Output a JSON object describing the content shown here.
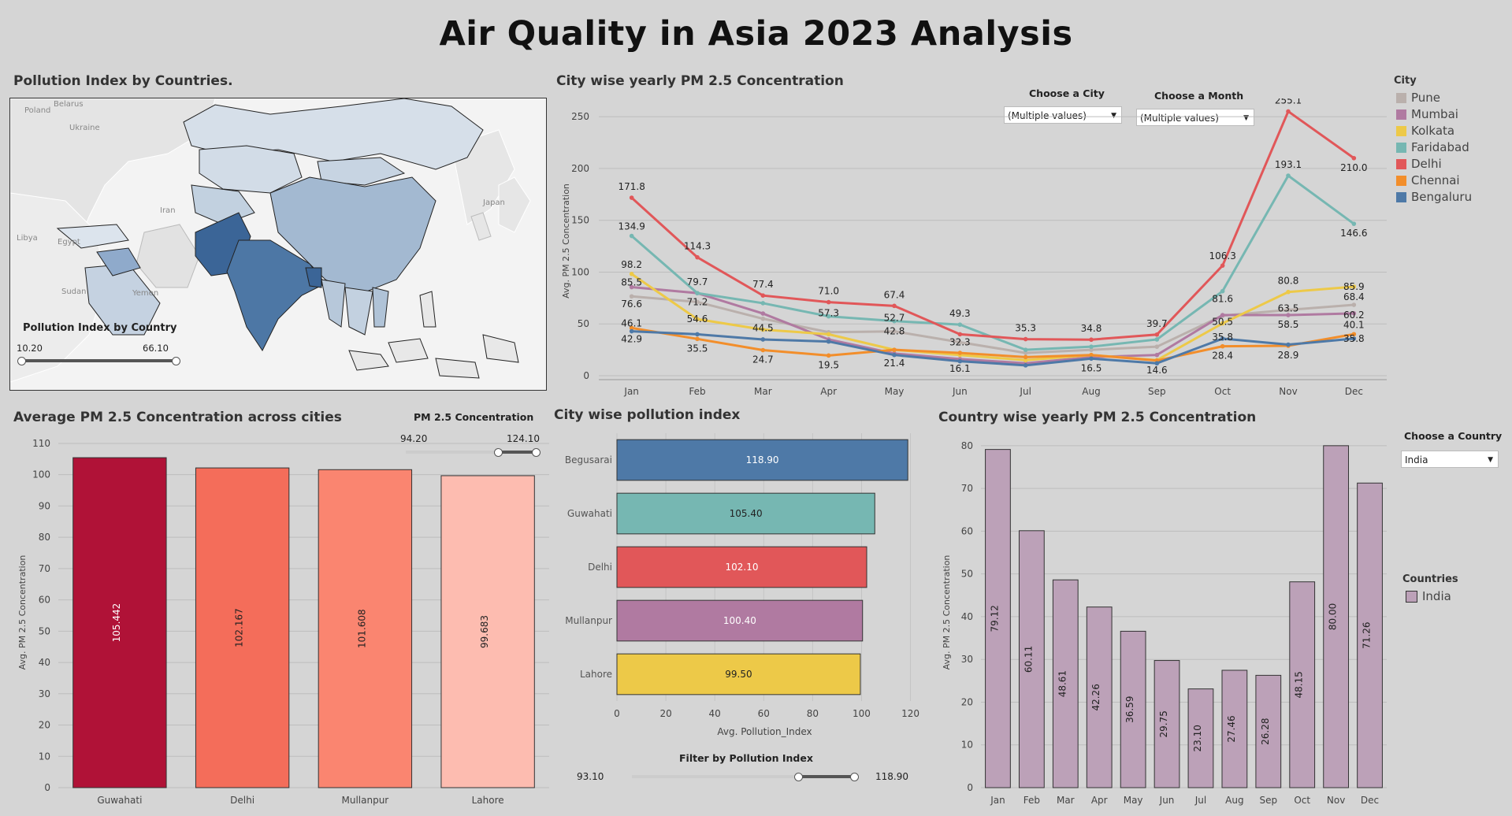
{
  "dashboard": {
    "title": "Air Quality in Asia 2023 Analysis"
  },
  "map_panel": {
    "title": "Pollution Index by Countries.",
    "legend_title": "Pollution Index by Country",
    "range_min": "10.20",
    "range_max": "66.10",
    "labels": [
      "Poland",
      "Belarus",
      "Ukraine",
      "Iran",
      "Japan",
      "Libya",
      "Egypt",
      "Sudan",
      "Yemen"
    ],
    "colors": {
      "low": "#d6dfe9",
      "mid": "#a3b9d1",
      "high": "#3b6597"
    }
  },
  "line_panel": {
    "title": "City wise yearly PM 2.5 Concentration",
    "city_filter": {
      "label": "Choose a City",
      "value": "(Multiple values)"
    },
    "month_filter": {
      "label": "Choose a Month",
      "value": "(Multiple values)"
    },
    "legend_title": "City"
  },
  "bar_panel": {
    "title": "Average PM 2.5 Concentration across cities",
    "slider_label": "PM 2.5 Concentration",
    "slider_min": "94.20",
    "slider_max": "124.10"
  },
  "hbar_panel": {
    "title": "City wise pollution index",
    "filter_label": "Filter by Pollution Index",
    "filter_min": "93.10",
    "filter_max": "118.90"
  },
  "country_panel": {
    "title": "Country wise yearly PM 2.5 Concentration",
    "country_filter": {
      "label": "Choose a Country",
      "value": "India"
    },
    "legend_title": "Countries",
    "legend_item": "India"
  },
  "chart_data": [
    {
      "id": "line",
      "type": "line",
      "ylabel": "Avg. PM 2.5 Concentration",
      "ylim": [
        0,
        260
      ],
      "yticks": [
        0,
        50,
        100,
        150,
        200,
        250
      ],
      "categories": [
        "Jan",
        "Feb",
        "Mar",
        "Apr",
        "May",
        "Jun",
        "Jul",
        "Aug",
        "Sep",
        "Oct",
        "Nov",
        "Dec"
      ],
      "legend_placement": "right",
      "series": [
        {
          "name": "Pune",
          "color": "#bab0ac",
          "values": [
            76.6,
            71.2,
            55,
            42,
            42.8,
            32.3,
            22,
            25,
            28,
            58,
            63.5,
            68.4
          ]
        },
        {
          "name": "Mumbai",
          "color": "#b07aa1",
          "values": [
            85.5,
            79.7,
            60,
            35,
            21.4,
            16.1,
            12,
            18,
            20,
            58.5,
            58.5,
            60.2
          ]
        },
        {
          "name": "Kolkata",
          "color": "#edc948",
          "values": [
            98.2,
            54.6,
            44.5,
            40,
            25,
            20,
            15,
            20,
            15,
            50.5,
            80.8,
            85.9
          ]
        },
        {
          "name": "Faridabad",
          "color": "#76b7b2",
          "values": [
            134.9,
            79.7,
            70,
            57.3,
            52.7,
            49.3,
            25,
            28,
            35,
            81.6,
            193.1,
            146.6
          ]
        },
        {
          "name": "Delhi",
          "color": "#e15759",
          "values": [
            171.8,
            114.3,
            77.4,
            71.0,
            67.4,
            40,
            35.3,
            34.8,
            39.7,
            106.3,
            255.1,
            210.0
          ]
        },
        {
          "name": "Chennai",
          "color": "#f28e2b",
          "values": [
            46.1,
            35.5,
            24.7,
            19.5,
            25,
            22,
            18,
            20,
            14.6,
            28.4,
            28.9,
            40.1
          ]
        },
        {
          "name": "Bengaluru",
          "color": "#4e79a7",
          "values": [
            42.9,
            40,
            35,
            33,
            20,
            14,
            10,
            16.5,
            12,
            35.8,
            30,
            35.8
          ]
        }
      ],
      "data_labels": [
        {
          "series": "Delhi",
          "i": 0,
          "text": "171.8",
          "dy": -10
        },
        {
          "series": "Faridabad",
          "i": 0,
          "text": "134.9",
          "dy": -8
        },
        {
          "series": "Kolkata",
          "i": 0,
          "text": "98.2",
          "dy": -8
        },
        {
          "series": "Mumbai",
          "i": 0,
          "text": "85.5",
          "dy": -2
        },
        {
          "series": "Pune",
          "i": 0,
          "text": "76.6",
          "dy": 14
        },
        {
          "series": "Chennai",
          "i": 0,
          "text": "46.1",
          "dy": -2
        },
        {
          "series": "Bengaluru",
          "i": 0,
          "text": "42.9",
          "dy": 14
        },
        {
          "series": "Delhi",
          "i": 1,
          "text": "114.3",
          "dy": -10
        },
        {
          "series": "Faridabad",
          "i": 1,
          "text": "79.7",
          "dy": -10
        },
        {
          "series": "Pune",
          "i": 1,
          "text": "71.2",
          "dy": 4
        },
        {
          "series": "Kolkata",
          "i": 1,
          "text": "54.6",
          "dy": 4
        },
        {
          "series": "Chennai",
          "i": 1,
          "text": "35.5",
          "dy": 16
        },
        {
          "series": "Delhi",
          "i": 2,
          "text": "77.4",
          "dy": -10
        },
        {
          "series": "Kolkata",
          "i": 2,
          "text": "44.5",
          "dy": 2
        },
        {
          "series": "Chennai",
          "i": 2,
          "text": "24.7",
          "dy": 16
        },
        {
          "series": "Delhi",
          "i": 3,
          "text": "71.0",
          "dy": -10
        },
        {
          "series": "Faridabad",
          "i": 3,
          "text": "57.3",
          "dy": 0
        },
        {
          "series": "Chennai",
          "i": 3,
          "text": "19.5",
          "dy": 16
        },
        {
          "series": "Delhi",
          "i": 4,
          "text": "67.4",
          "dy": -10
        },
        {
          "series": "Faridabad",
          "i": 4,
          "text": "52.7",
          "dy": 0
        },
        {
          "series": "Pune",
          "i": 4,
          "text": "42.8",
          "dy": 4
        },
        {
          "series": "Mumbai",
          "i": 4,
          "text": "21.4",
          "dy": 16
        },
        {
          "series": "Faridabad",
          "i": 5,
          "text": "49.3",
          "dy": -10
        },
        {
          "series": "Pune",
          "i": 5,
          "text": "32.3",
          "dy": 4
        },
        {
          "series": "Mumbai",
          "i": 5,
          "text": "16.1",
          "dy": 16
        },
        {
          "series": "Delhi",
          "i": 6,
          "text": "35.3",
          "dy": -10
        },
        {
          "series": "Delhi",
          "i": 7,
          "text": "34.8",
          "dy": -10
        },
        {
          "series": "Bengaluru",
          "i": 7,
          "text": "16.5",
          "dy": 16
        },
        {
          "series": "Delhi",
          "i": 8,
          "text": "39.7",
          "dy": -10
        },
        {
          "series": "Chennai",
          "i": 8,
          "text": "14.6",
          "dy": 16
        },
        {
          "series": "Delhi",
          "i": 9,
          "text": "106.3",
          "dy": -8
        },
        {
          "series": "Faridabad",
          "i": 9,
          "text": "81.6",
          "dy": 14
        },
        {
          "series": "Kolkata",
          "i": 9,
          "text": "50.5",
          "dy": 2
        },
        {
          "series": "Bengaluru",
          "i": 9,
          "text": "35.8",
          "dy": 2
        },
        {
          "series": "Chennai",
          "i": 9,
          "text": "28.4",
          "dy": 16
        },
        {
          "series": "Delhi",
          "i": 10,
          "text": "255.1",
          "dy": -10
        },
        {
          "series": "Faridabad",
          "i": 10,
          "text": "193.1",
          "dy": -10
        },
        {
          "series": "Kolkata",
          "i": 10,
          "text": "80.8",
          "dy": -10
        },
        {
          "series": "Pune",
          "i": 10,
          "text": "63.5",
          "dy": 2
        },
        {
          "series": "Mumbai",
          "i": 10,
          "text": "58.5",
          "dy": 16
        },
        {
          "series": "Chennai",
          "i": 10,
          "text": "28.9",
          "dy": 16
        },
        {
          "series": "Delhi",
          "i": 11,
          "text": "210.0",
          "dy": 16
        },
        {
          "series": "Faridabad",
          "i": 11,
          "text": "146.6",
          "dy": 16
        },
        {
          "series": "Kolkata",
          "i": 11,
          "text": "85.9",
          "dy": 4
        },
        {
          "series": "Pune",
          "i": 11,
          "text": "68.4",
          "dy": -6
        },
        {
          "series": "Mumbai",
          "i": 11,
          "text": "60.2",
          "dy": 6
        },
        {
          "series": "Chennai",
          "i": 11,
          "text": "40.1",
          "dy": -8
        },
        {
          "series": "Bengaluru",
          "i": 11,
          "text": "35.8",
          "dy": 4
        }
      ]
    },
    {
      "id": "avgbar",
      "type": "bar",
      "ylabel": "Avg. PM 2.5 Concentration",
      "ylim": [
        0,
        112
      ],
      "yticks": [
        0,
        10,
        20,
        30,
        40,
        50,
        60,
        70,
        80,
        90,
        100,
        110
      ],
      "categories": [
        "Guwahati",
        "Delhi",
        "Mullanpur",
        "Lahore"
      ],
      "values": [
        105.442,
        102.167,
        101.608,
        99.683
      ],
      "labels": [
        "105.442",
        "102.167",
        "101.608",
        "99.683"
      ],
      "colors": [
        "#b01237",
        "#f46d5a",
        "#fa8570",
        "#fdbcb0"
      ]
    },
    {
      "id": "hbar",
      "type": "bar",
      "orientation": "horizontal",
      "xlabel": "Avg. Pollution_Index",
      "xlim": [
        0,
        124
      ],
      "xticks": [
        0,
        20,
        40,
        60,
        80,
        100,
        120
      ],
      "categories": [
        "Begusarai",
        "Guwahati",
        "Delhi",
        "Mullanpur",
        "Lahore"
      ],
      "values": [
        118.9,
        105.4,
        102.1,
        100.4,
        99.5
      ],
      "labels": [
        "118.90",
        "105.40",
        "102.10",
        "100.40",
        "99.50"
      ],
      "colors": [
        "#4e79a7",
        "#76b7b2",
        "#e15759",
        "#b07aa1",
        "#edc948"
      ]
    },
    {
      "id": "country",
      "type": "bar",
      "ylabel": "Avg. PM 2.5 Concentration",
      "ylim": [
        0,
        82
      ],
      "yticks": [
        0,
        10,
        20,
        30,
        40,
        50,
        60,
        70,
        80
      ],
      "categories": [
        "Jan",
        "Feb",
        "Mar",
        "Apr",
        "May",
        "Jun",
        "Jul",
        "Aug",
        "Sep",
        "Oct",
        "Nov",
        "Dec"
      ],
      "values": [
        79.12,
        60.11,
        48.61,
        42.26,
        36.59,
        29.75,
        23.1,
        27.46,
        26.28,
        48.15,
        80.0,
        71.26
      ],
      "labels": [
        "79.12",
        "60.11",
        "48.61",
        "42.26",
        "36.59",
        "29.75",
        "23.10",
        "27.46",
        "26.28",
        "48.15",
        "80.00",
        "71.26"
      ],
      "color": "#bca1b8"
    }
  ]
}
